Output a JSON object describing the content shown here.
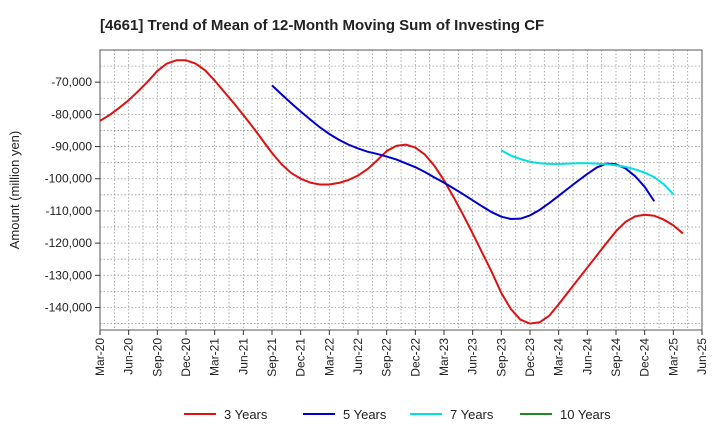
{
  "chart_data": {
    "type": "line",
    "title": "[4661]  Trend of Mean of 12-Month Moving Sum of Investing CF",
    "xlabel": "",
    "ylabel": "Amount (million yen)",
    "ylim": [
      -147000,
      -60000
    ],
    "yticks": [
      -70000,
      -80000,
      -90000,
      -100000,
      -110000,
      -120000,
      -130000,
      -140000
    ],
    "ytick_labels": [
      "-70,000",
      "-80,000",
      "-90,000",
      "-100,000",
      "-110,000",
      "-120,000",
      "-130,000",
      "-140,000"
    ],
    "xticks": [
      "Mar-20",
      "Jun-20",
      "Sep-20",
      "Dec-20",
      "Mar-21",
      "Jun-21",
      "Sep-21",
      "Dec-21",
      "Mar-22",
      "Jun-22",
      "Sep-22",
      "Dec-22",
      "Mar-23",
      "Jun-23",
      "Sep-23",
      "Dec-23",
      "Mar-24",
      "Jun-24",
      "Sep-24",
      "Dec-24",
      "Mar-25",
      "Jun-25"
    ],
    "x_start_month_index": 0,
    "x_end_month_index": 63,
    "grid": true,
    "legend_position": "bottom",
    "series": [
      {
        "name": "3 Years",
        "color": "#dd1111",
        "start_month_index": 0,
        "values": [
          -82000,
          -80200,
          -78000,
          -75600,
          -72800,
          -69800,
          -66500,
          -64200,
          -63200,
          -63200,
          -64200,
          -66300,
          -69500,
          -73000,
          -76500,
          -80200,
          -84000,
          -88000,
          -92000,
          -95500,
          -98200,
          -100000,
          -101200,
          -101800,
          -101800,
          -101300,
          -100400,
          -99000,
          -97000,
          -94300,
          -91400,
          -89800,
          -89400,
          -90300,
          -92500,
          -96000,
          -100500,
          -105700,
          -111200,
          -117000,
          -123000,
          -129000,
          -135500,
          -140500,
          -143800,
          -145000,
          -144600,
          -142600,
          -139000,
          -135200,
          -131400,
          -127600,
          -123800,
          -120000,
          -116300,
          -113400,
          -111700,
          -111200,
          -111500,
          -112700,
          -114500,
          -117000
        ]
      },
      {
        "name": "5 Years",
        "color": "#0000cc",
        "start_month_index": 18,
        "values": [
          -71000,
          -73800,
          -76500,
          -79100,
          -81600,
          -84000,
          -86100,
          -87900,
          -89400,
          -90600,
          -91600,
          -92300,
          -93100,
          -94000,
          -95200,
          -96400,
          -97900,
          -99600,
          -101200,
          -103000,
          -104800,
          -106700,
          -108600,
          -110400,
          -111800,
          -112500,
          -112400,
          -111400,
          -109700,
          -107600,
          -105300,
          -103000,
          -100700,
          -98500,
          -96500,
          -95300,
          -95500,
          -96800,
          -99200,
          -102500,
          -107000
        ]
      },
      {
        "name": "7 Years",
        "color": "#00e0e0",
        "start_month_index": 42,
        "values": [
          -91200,
          -92800,
          -93900,
          -94700,
          -95200,
          -95400,
          -95400,
          -95300,
          -95200,
          -95200,
          -95300,
          -95500,
          -95800,
          -96300,
          -97100,
          -98100,
          -99500,
          -101700,
          -104800
        ]
      },
      {
        "name": "10 Years",
        "color": "#228822",
        "start_month_index": 0,
        "values": []
      }
    ]
  }
}
